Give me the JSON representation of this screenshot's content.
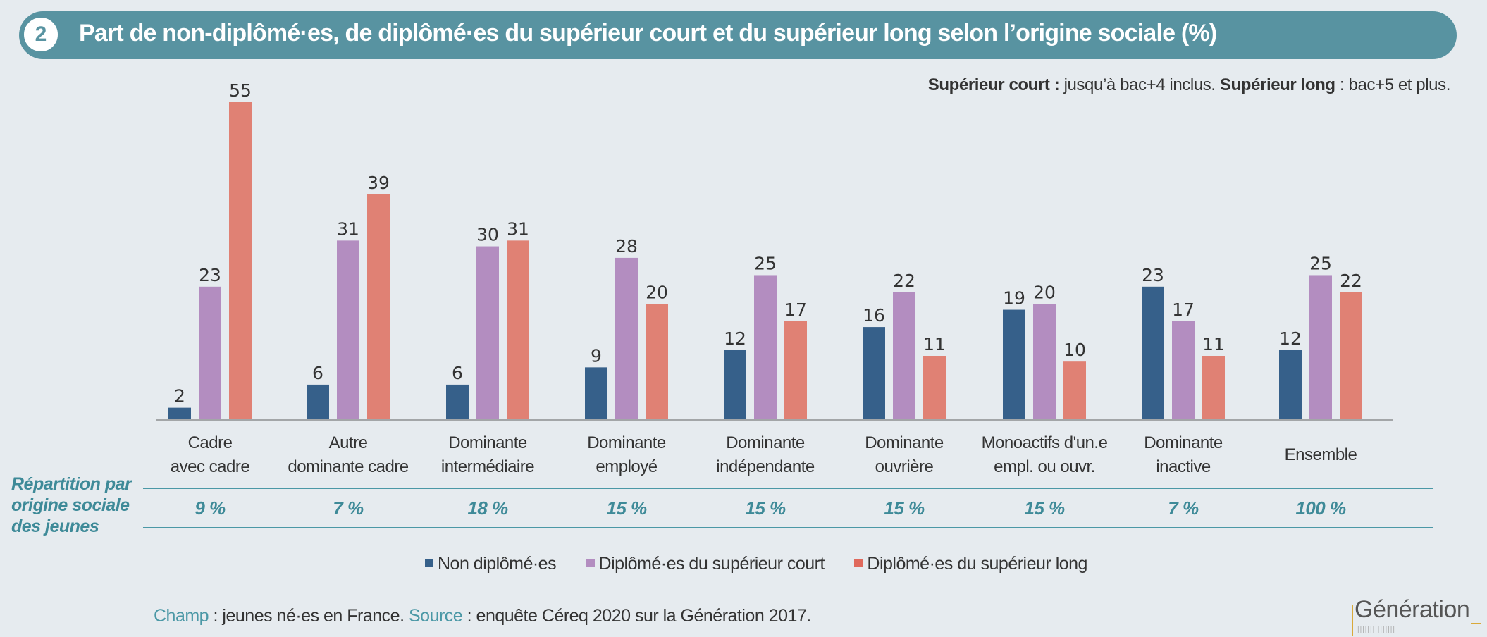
{
  "header": {
    "number": "2",
    "title": "Part de non-diplômé·es, de diplômé·es du supérieur court et du supérieur long selon l’origine sociale (%)"
  },
  "note": {
    "court_label": "Supérieur court :",
    "court_text": " jusqu’à bac+4 inclus. ",
    "long_label": "Supérieur long",
    "long_text": " : bac+5 et plus."
  },
  "chart_data": {
    "type": "bar",
    "title": "Part de non-diplômé·es, de diplômé·es du supérieur court et du supérieur long selon l’origine sociale (%)",
    "xlabel": "",
    "ylabel": "",
    "ylim": [
      0,
      60
    ],
    "grid": false,
    "legend_position": "bottom",
    "categories": [
      [
        "Cadre",
        "avec cadre"
      ],
      [
        "Autre",
        "dominante cadre"
      ],
      [
        "Dominante",
        "intermédiaire"
      ],
      [
        "Dominante",
        "employé"
      ],
      [
        "Dominante",
        "indépendante"
      ],
      [
        "Dominante",
        "ouvrière"
      ],
      [
        "Monoactifs d'un.e",
        "empl. ou ouvr."
      ],
      [
        "Dominante",
        "inactive"
      ],
      [
        "Ensemble"
      ]
    ],
    "series": [
      {
        "name": "Non diplômé·es",
        "color": "#36608a",
        "values": [
          2,
          6,
          6,
          9,
          12,
          16,
          19,
          23,
          12
        ]
      },
      {
        "name": "Diplômé·es du supérieur court",
        "color": "#b38dc0",
        "values": [
          23,
          31,
          30,
          28,
          25,
          22,
          20,
          17,
          25
        ]
      },
      {
        "name": "Diplômé·es du supérieur long",
        "color": "#e08174",
        "values": [
          55,
          39,
          31,
          20,
          17,
          11,
          10,
          11,
          22
        ]
      }
    ]
  },
  "repartition": {
    "label_lines": [
      "Répartition par",
      "origine sociale",
      "des jeunes"
    ],
    "values": [
      "9 %",
      "7 %",
      "18 %",
      "15 %",
      "15 %",
      "15 %",
      "15 %",
      "7 %",
      "100 %"
    ]
  },
  "footer": {
    "champ_label": "Champ",
    "champ_text": " : jeunes né·es en France. ",
    "source_label": "Source",
    "source_text": "  : enquête Céreq 2020 sur la Génération 2017."
  },
  "logo": {
    "text": "Génération"
  },
  "colors": {
    "accent": "#5893a1",
    "teal_text": "#3e8a98",
    "background": "#e6ebef"
  }
}
